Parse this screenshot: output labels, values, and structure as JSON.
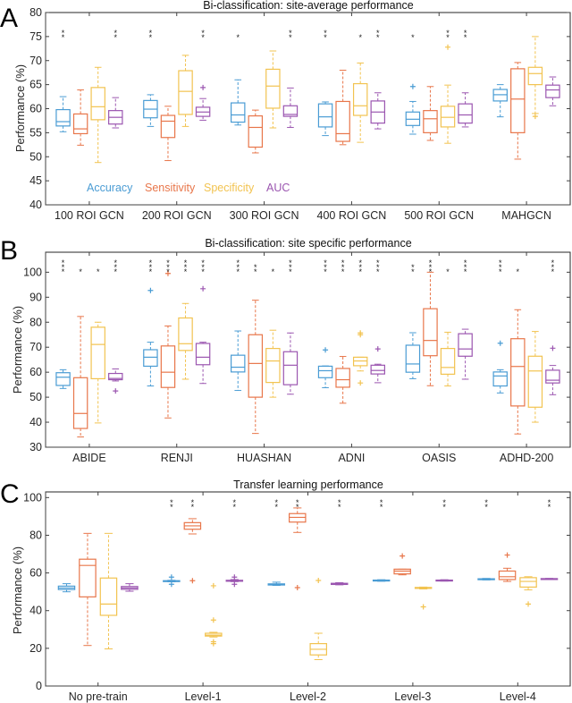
{
  "figure": {
    "colors": {
      "Accuracy": "#4a9cd4",
      "Sensitivity": "#e8764a",
      "Specificity": "#f2c350",
      "AUC": "#9b56b0",
      "star": "#222222"
    }
  },
  "chart_data": [
    {
      "panel": "A",
      "type": "box",
      "title": "Bi-classification: site-average performance",
      "xlabel": "",
      "ylabel": "Performance (%)",
      "ylim": [
        40,
        80
      ],
      "yticks": [
        40,
        45,
        50,
        55,
        60,
        65,
        70,
        75,
        80
      ],
      "categories": [
        "100 ROI GCN",
        "200 ROI GCN",
        "300 ROI GCN",
        "400 ROI GCN",
        "500 ROI GCN",
        "MAHGCN"
      ],
      "legend": {
        "entries": [
          "Accuracy",
          "Sensitivity",
          "Specificity",
          "AUC"
        ],
        "placement": "bottom-left-inside"
      },
      "series": [
        {
          "name": "Accuracy",
          "boxes": [
            {
              "min": 55.2,
              "q1": 56.4,
              "median": 57.3,
              "q3": 59.8,
              "max": 62.5,
              "outliers": []
            },
            {
              "min": 56.3,
              "q1": 58.1,
              "median": 59.9,
              "q3": 61.7,
              "max": 62.9,
              "outliers": []
            },
            {
              "min": 56.6,
              "q1": 57.2,
              "median": 58.7,
              "q3": 61.2,
              "max": 66.0,
              "outliers": []
            },
            {
              "min": 54.4,
              "q1": 56.2,
              "median": 58.3,
              "q3": 61.0,
              "max": 61.4,
              "outliers": []
            },
            {
              "min": 54.7,
              "q1": 56.5,
              "median": 57.8,
              "q3": 59.3,
              "max": 61.5,
              "outliers": [
                64.6
              ]
            },
            {
              "min": 58.3,
              "q1": 61.6,
              "median": 62.9,
              "q3": 64.0,
              "max": 65.0,
              "outliers": []
            }
          ]
        },
        {
          "name": "Sensitivity",
          "boxes": [
            {
              "min": 52.4,
              "q1": 54.8,
              "median": 55.8,
              "q3": 58.9,
              "max": 63.9,
              "outliers": []
            },
            {
              "min": 49.2,
              "q1": 54.0,
              "median": 57.4,
              "q3": 58.6,
              "max": 60.5,
              "outliers": []
            },
            {
              "min": 50.8,
              "q1": 52.0,
              "median": 56.1,
              "q3": 58.5,
              "max": 59.7,
              "outliers": []
            },
            {
              "min": 52.5,
              "q1": 53.2,
              "median": 54.8,
              "q3": 61.5,
              "max": 68.0,
              "outliers": []
            },
            {
              "min": 53.4,
              "q1": 55.0,
              "median": 57.9,
              "q3": 59.6,
              "max": 64.6,
              "outliers": []
            },
            {
              "min": 49.5,
              "q1": 55.0,
              "median": 62.0,
              "q3": 68.3,
              "max": 69.6,
              "outliers": []
            }
          ]
        },
        {
          "name": "Specificity",
          "boxes": [
            {
              "min": 48.8,
              "q1": 57.7,
              "median": 60.4,
              "q3": 64.4,
              "max": 68.6,
              "outliers": []
            },
            {
              "min": 56.3,
              "q1": 58.8,
              "median": 63.6,
              "q3": 67.9,
              "max": 71.1,
              "outliers": []
            },
            {
              "min": 56.0,
              "q1": 60.1,
              "median": 64.7,
              "q3": 68.2,
              "max": 72.0,
              "outliers": []
            },
            {
              "min": 53.0,
              "q1": 58.6,
              "median": 60.6,
              "q3": 65.2,
              "max": 69.5,
              "outliers": []
            },
            {
              "min": 52.8,
              "q1": 56.2,
              "median": 58.2,
              "q3": 60.5,
              "max": 64.9,
              "outliers": [
                72.8
              ]
            },
            {
              "min": 59.0,
              "q1": 65.0,
              "median": 67.3,
              "q3": 68.6,
              "max": 75.0,
              "outliers": [
                58.4
              ]
            }
          ]
        },
        {
          "name": "AUC",
          "boxes": [
            {
              "min": 56.0,
              "q1": 56.8,
              "median": 58.2,
              "q3": 59.6,
              "max": 62.3,
              "outliers": []
            },
            {
              "min": 57.6,
              "q1": 58.4,
              "median": 59.3,
              "q3": 60.3,
              "max": 62.1,
              "outliers": [
                64.4
              ]
            },
            {
              "min": 56.1,
              "q1": 58.4,
              "median": 58.8,
              "q3": 60.6,
              "max": 64.3,
              "outliers": []
            },
            {
              "min": 55.8,
              "q1": 57.0,
              "median": 59.3,
              "q3": 61.6,
              "max": 63.3,
              "outliers": []
            },
            {
              "min": 56.2,
              "q1": 57.0,
              "median": 58.7,
              "q3": 61.0,
              "max": 63.3,
              "outliers": []
            },
            {
              "min": 60.6,
              "q1": 62.3,
              "median": 63.9,
              "q3": 64.9,
              "max": 66.6,
              "outliers": []
            }
          ]
        }
      ],
      "significance": [
        [
          "**",
          "",
          "",
          "**"
        ],
        [
          "**",
          "",
          "",
          "**"
        ],
        [
          "*",
          "",
          "",
          "**"
        ],
        [
          "**",
          "",
          "*",
          "**"
        ],
        [
          "*",
          "",
          "**",
          "**"
        ],
        [
          "",
          "",
          "",
          ""
        ]
      ]
    },
    {
      "panel": "B",
      "type": "box",
      "title": "Bi-classification: site specific performance",
      "xlabel": "",
      "ylabel": "Performance (%)",
      "ylim": [
        30,
        108
      ],
      "yticks": [
        30,
        40,
        50,
        60,
        70,
        80,
        90,
        100
      ],
      "categories": [
        "ABIDE",
        "RENJI",
        "HUASHAN",
        "ADNI",
        "OASIS",
        "ADHD-200"
      ],
      "series": [
        {
          "name": "Accuracy",
          "boxes": [
            {
              "min": 53.5,
              "q1": 54.7,
              "median": 58.0,
              "q3": 59.8,
              "max": 61.0,
              "outliers": []
            },
            {
              "min": 54.5,
              "q1": 62.4,
              "median": 66.0,
              "q3": 69.0,
              "max": 72.0,
              "outliers": [
                92.7
              ]
            },
            {
              "min": 52.7,
              "q1": 60.1,
              "median": 62.0,
              "q3": 66.8,
              "max": 76.5,
              "outliers": []
            },
            {
              "min": 53.8,
              "q1": 57.8,
              "median": 60.6,
              "q3": 62.4,
              "max": 62.5,
              "outliers": [
                68.9
              ]
            },
            {
              "min": 57.4,
              "q1": 60.0,
              "median": 63.3,
              "q3": 70.8,
              "max": 75.8,
              "outliers": []
            },
            {
              "min": 51.7,
              "q1": 54.5,
              "median": 58.5,
              "q3": 60.1,
              "max": 61.0,
              "outliers": [
                71.6
              ]
            }
          ]
        },
        {
          "name": "Sensitivity",
          "boxes": [
            {
              "min": 34.1,
              "q1": 37.5,
              "median": 43.5,
              "q3": 57.8,
              "max": 82.3,
              "outliers": []
            },
            {
              "min": 41.7,
              "q1": 53.9,
              "median": 60.0,
              "q3": 70.5,
              "max": 78.5,
              "outliers": [
                99.5
              ]
            },
            {
              "min": 35.5,
              "q1": 50.0,
              "median": 63.5,
              "q3": 75.0,
              "max": 88.8,
              "outliers": []
            },
            {
              "min": 47.6,
              "q1": 54.0,
              "median": 57.0,
              "q3": 61.5,
              "max": 66.3,
              "outliers": []
            },
            {
              "min": 54.6,
              "q1": 66.6,
              "median": 72.7,
              "q3": 85.4,
              "max": 100.0,
              "outliers": []
            },
            {
              "min": 35.3,
              "q1": 46.5,
              "median": 62.3,
              "q3": 73.4,
              "max": 85.0,
              "outliers": []
            }
          ]
        },
        {
          "name": "Specificity",
          "boxes": [
            {
              "min": 39.7,
              "q1": 57.4,
              "median": 71.1,
              "q3": 78.0,
              "max": 80.0,
              "outliers": []
            },
            {
              "min": 57.2,
              "q1": 68.7,
              "median": 71.4,
              "q3": 81.7,
              "max": 87.5,
              "outliers": []
            },
            {
              "min": 50.0,
              "q1": 55.9,
              "median": 64.5,
              "q3": 69.5,
              "max": 76.8,
              "outliers": []
            },
            {
              "min": 60.5,
              "q1": 62.6,
              "median": 64.5,
              "q3": 66.0,
              "max": 66.0,
              "outliers": [
                55.7,
                75.0,
                75.7
              ]
            },
            {
              "min": 54.5,
              "q1": 59.2,
              "median": 61.9,
              "q3": 69.5,
              "max": 76.0,
              "outliers": []
            },
            {
              "min": 40.0,
              "q1": 46.0,
              "median": 60.5,
              "q3": 66.4,
              "max": 76.3,
              "outliers": []
            }
          ]
        },
        {
          "name": "AUC",
          "boxes": [
            {
              "min": 56.5,
              "q1": 57.0,
              "median": 57.5,
              "q3": 59.5,
              "max": 61.3,
              "outliers": [
                52.5
              ]
            },
            {
              "min": 55.5,
              "q1": 63.0,
              "median": 66.0,
              "q3": 71.5,
              "max": 72.0,
              "outliers": [
                93.4
              ]
            },
            {
              "min": 51.2,
              "q1": 55.0,
              "median": 62.8,
              "q3": 68.2,
              "max": 75.7,
              "outliers": []
            },
            {
              "min": 55.8,
              "q1": 59.3,
              "median": 60.7,
              "q3": 62.8,
              "max": 63.2,
              "outliers": [
                69.3
              ]
            },
            {
              "min": 57.2,
              "q1": 66.4,
              "median": 69.3,
              "q3": 75.4,
              "max": 77.2,
              "outliers": []
            },
            {
              "min": 51.0,
              "q1": 55.7,
              "median": 56.8,
              "q3": 60.8,
              "max": 62.7,
              "outliers": [
                69.6
              ]
            }
          ]
        }
      ],
      "significance": [
        [
          "***",
          "*",
          "*",
          "***"
        ],
        [
          "***",
          "***",
          "***",
          "***"
        ],
        [
          "***",
          "**",
          "*",
          "***"
        ],
        [
          "***",
          "***",
          "***",
          "***"
        ],
        [
          "**",
          "***",
          "*",
          "***"
        ],
        [
          "***",
          "*",
          "",
          "***"
        ]
      ]
    },
    {
      "panel": "C",
      "type": "box",
      "title": "Transfer learning performance",
      "xlabel": "",
      "ylabel": "Performance (%)",
      "ylim": [
        0,
        103
      ],
      "yticks": [
        0,
        20,
        40,
        60,
        80,
        100
      ],
      "categories": [
        "No pre-train",
        "Level-1",
        "Level-2",
        "Level-3",
        "Level-4"
      ],
      "series": [
        {
          "name": "Accuracy",
          "boxes": [
            {
              "min": 50.0,
              "q1": 51.2,
              "median": 52.0,
              "q3": 53.0,
              "max": 54.3,
              "outliers": []
            },
            {
              "min": 55.3,
              "q1": 55.5,
              "median": 55.7,
              "q3": 55.9,
              "max": 56.1,
              "outliers": [
                54.0,
                57.8
              ]
            },
            {
              "min": 53.4,
              "q1": 53.6,
              "median": 53.9,
              "q3": 54.2,
              "max": 55.1,
              "outliers": []
            },
            {
              "min": 55.6,
              "q1": 55.8,
              "median": 56.0,
              "q3": 56.2,
              "max": 56.4,
              "outliers": []
            },
            {
              "min": 56.3,
              "q1": 56.5,
              "median": 56.7,
              "q3": 56.9,
              "max": 57.1,
              "outliers": []
            }
          ]
        },
        {
          "name": "Sensitivity",
          "boxes": [
            {
              "min": 21.5,
              "q1": 47.3,
              "median": 64.0,
              "q3": 67.3,
              "max": 81.0,
              "outliers": []
            },
            {
              "min": 80.7,
              "q1": 83.2,
              "median": 85.0,
              "q3": 86.7,
              "max": 88.8,
              "outliers": [
                55.9
              ]
            },
            {
              "min": 81.5,
              "q1": 87.0,
              "median": 89.5,
              "q3": 91.5,
              "max": 94.5,
              "outliers": [
                52.2
              ]
            },
            {
              "min": 59.0,
              "q1": 59.5,
              "median": 61.0,
              "q3": 62.0,
              "max": 62.0,
              "outliers": [
                69.0
              ]
            },
            {
              "min": 55.5,
              "q1": 56.5,
              "median": 58.0,
              "q3": 61.0,
              "max": 62.5,
              "outliers": [
                69.5
              ]
            }
          ]
        },
        {
          "name": "Specificity",
          "boxes": [
            {
              "min": 19.7,
              "q1": 37.5,
              "median": 43.5,
              "q3": 57.3,
              "max": 81.0,
              "outliers": []
            },
            {
              "min": 26.0,
              "q1": 26.5,
              "median": 27.0,
              "q3": 28.0,
              "max": 28.5,
              "outliers": [
                22.5,
                23.5,
                35.0,
                53.2
              ]
            },
            {
              "min": 14.0,
              "q1": 16.5,
              "median": 19.5,
              "q3": 22.5,
              "max": 28.0,
              "outliers": [
                56.0
              ]
            },
            {
              "min": 51.5,
              "q1": 51.8,
              "median": 52.0,
              "q3": 52.3,
              "max": 52.5,
              "outliers": [
                42.0
              ]
            },
            {
              "min": 51.0,
              "q1": 52.5,
              "median": 55.5,
              "q3": 57.5,
              "max": 58.0,
              "outliers": [
                43.5
              ]
            }
          ]
        },
        {
          "name": "AUC",
          "boxes": [
            {
              "min": 50.3,
              "q1": 51.3,
              "median": 52.0,
              "q3": 52.8,
              "max": 54.3,
              "outliers": []
            },
            {
              "min": 55.4,
              "q1": 55.6,
              "median": 55.9,
              "q3": 56.1,
              "max": 56.5,
              "outliers": [
                54.0,
                57.8
              ]
            },
            {
              "min": 53.7,
              "q1": 53.9,
              "median": 54.2,
              "q3": 54.5,
              "max": 54.8,
              "outliers": []
            },
            {
              "min": 55.7,
              "q1": 55.9,
              "median": 56.0,
              "q3": 56.2,
              "max": 56.4,
              "outliers": []
            },
            {
              "min": 56.5,
              "q1": 56.6,
              "median": 56.8,
              "q3": 57.0,
              "max": 57.1,
              "outliers": []
            }
          ]
        }
      ],
      "significance": [
        [
          "",
          "",
          "",
          ""
        ],
        [
          "**",
          "**",
          "",
          "**"
        ],
        [
          "**",
          "**",
          "",
          "**"
        ],
        [
          "**",
          "",
          "",
          "**"
        ],
        [
          "**",
          "",
          "",
          "**"
        ]
      ]
    }
  ]
}
